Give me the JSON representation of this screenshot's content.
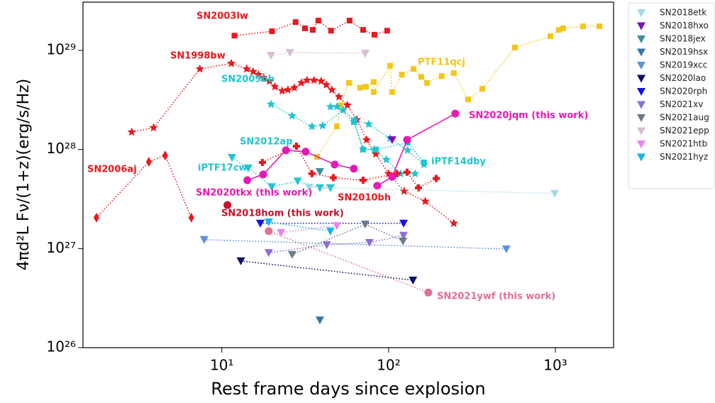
{
  "chart_data": {
    "type": "scatter",
    "x_label": "Rest frame days since explosion",
    "y_label": "4πd²L Fν/(1+z)(erg/s/Hz)",
    "x_log": true,
    "y_log": true,
    "xlim": [
      1.47,
      2233
    ],
    "ylim": [
      1e+26,
      3.07e+29
    ],
    "xticks": [
      {
        "value": 10,
        "label": "10¹"
      },
      {
        "value": 100,
        "label": "10²"
      },
      {
        "value": 1000,
        "label": "10³"
      }
    ],
    "yticks": [
      {
        "value": 1e+26,
        "label": "10²⁶"
      },
      {
        "value": 1e+27,
        "label": "10²⁷"
      },
      {
        "value": 1e+28,
        "label": "10²⁸"
      },
      {
        "value": 1e+29,
        "label": "10²⁹"
      }
    ],
    "legend": "outside-right",
    "series": [
      {
        "name": "SN2003lw",
        "color": "#e8191f",
        "marker": "square",
        "line": "dotted",
        "in_legend": false,
        "x": [
          11.9,
          20,
          27.7,
          31.5,
          35.1,
          37.9,
          45.2,
          58.3,
          70.3,
          82.2,
          98
        ],
        "values": [
          1.41e+29,
          1.56e+29,
          1.93e+29,
          1.67e+29,
          1.61e+29,
          2e+29,
          1.58e+29,
          2e+29,
          1.61e+29,
          1.44e+29,
          1.58e+29
        ]
      },
      {
        "name": "SN1998bw",
        "color": "#e8191f",
        "marker": "star",
        "line": "dotted",
        "in_legend": false,
        "x": [
          2.88,
          3.9,
          7.38,
          11.4,
          14.1,
          15.4,
          16.6,
          17.8,
          19.3,
          20.8,
          23.0,
          24.9,
          27.2,
          30.0,
          32.4,
          35.7,
          39.4,
          42.3,
          45.7,
          50.4,
          56.6,
          64.4,
          73.8,
          83.8,
          100,
          124,
          166,
          246
        ],
        "values": [
          1.5e+28,
          1.66e+28,
          6.5e+28,
          7.4e+28,
          6.5e+28,
          6.1e+28,
          5.7e+28,
          5.3e+28,
          4.9e+28,
          4.3e+28,
          3.9e+28,
          4e+28,
          4.2e+28,
          4.7e+28,
          5e+28,
          5e+28,
          4.9e+28,
          4.5e+28,
          4e+28,
          3.4e+28,
          2.8e+28,
          2e+28,
          1.25e+28,
          9e+27,
          5.7e+27,
          3.8e+27,
          3e+27,
          1.8e+27
        ]
      },
      {
        "name": "SN2006aj",
        "color": "#e8191f",
        "marker": "diamond",
        "line": "dotted",
        "in_legend": false,
        "x": [
          1.77,
          3.65,
          4.57,
          6.56
        ],
        "values": [
          2.05e+27,
          7.5e+27,
          8.7e+27,
          2.05e+27
        ]
      },
      {
        "name": "PTF11qcj",
        "color": "#f5c518",
        "marker": "square",
        "line": "dotted",
        "in_legend": false,
        "x": [
          37.2,
          48.9,
          51.4,
          57.8,
          67.6,
          73.1,
          81.4,
          81.4,
          102,
          105,
          120,
          141,
          157,
          170,
          208,
          246,
          300,
          365,
          572,
          934,
          1050,
          1114,
          1466,
          1837
        ],
        "values": [
          8.4e+27,
          1.71e+28,
          2.8e+28,
          4.7e+28,
          4.2e+28,
          4.3e+28,
          4.8e+28,
          3.8e+28,
          7e+28,
          3.8e+28,
          5.7e+28,
          6.5e+28,
          5.4e+28,
          4.7e+28,
          5.5e+28,
          5.9e+28,
          3.2e+28,
          4.1e+28,
          1.07e+29,
          1.39e+29,
          1.61e+29,
          1.67e+29,
          1.75e+29,
          1.75e+29
        ]
      },
      {
        "name": "SN2009bb",
        "color": "#22c4cf",
        "marker": "star",
        "line": "dotted",
        "in_legend": false,
        "x": [
          19.7,
          26.4,
          34.7,
          40.2,
          53.4,
          62.5,
          76,
          102,
          130,
          163
        ],
        "values": [
          2.86e+28,
          2.19e+28,
          1.71e+28,
          1.74e+28,
          2.5e+28,
          2e+28,
          1.8e+28,
          1.3e+28,
          9.8e+27,
          7.05e+27
        ]
      },
      {
        "name": "SN2012ap",
        "color": "#22c4cf",
        "marker": "star",
        "line": "dotted",
        "in_legend": false,
        "x": [
          44.8,
          49,
          62,
          70.3,
          82,
          97,
          118,
          144
        ],
        "values": [
          2.7e+28,
          2.7e+28,
          1.9e+28,
          1e+28,
          1e+28,
          7.9e+27,
          5.7e+27,
          5.7e+27
        ]
      },
      {
        "name": "iPTF17cw",
        "color": "#22c4cf",
        "marker": "triangle-down",
        "line": "dotted",
        "in_legend": false,
        "x": [
          11.5,
          14.4,
          19.9,
          28.5,
          38.7,
          44.8
        ],
        "values": [
          8.3e+27,
          6.5e+27,
          4.2e+27,
          4.8e+27,
          4.1e+27,
          4.1e+27
        ]
      },
      {
        "name": "iPTF14dby",
        "color": "#22c4cf",
        "marker": "square",
        "line": "dotted",
        "in_legend": false,
        "x": [
          62,
          70.3,
          84,
          130,
          163
        ],
        "values": [
          1.9e+28,
          1e+28,
          1e+28,
          1.17e+28,
          7.4e+27
        ]
      },
      {
        "name": "SN2010bh",
        "color": "#e8191f",
        "marker": "cross",
        "line": "dotted",
        "in_legend": false,
        "x": [
          17.5,
          28,
          34.7,
          46.6,
          70.3,
          112,
          129,
          151,
          193
        ],
        "values": [
          7.4e+27,
          1.08e+28,
          5.7e+27,
          5.2e+27,
          4.9e+27,
          5.7e+27,
          5.9e+27,
          4.1e+27,
          5.1e+27
        ]
      },
      {
        "name": "SN2020tkx (this work)",
        "color": "#e619b4",
        "marker": "circle",
        "line": "solid",
        "in_legend": false,
        "x": [
          14.2,
          17.7,
          24.2,
          31.8,
          47.5,
          61.9
        ],
        "values": [
          4.9e+27,
          5.6e+27,
          9.8e+27,
          9.5e+27,
          7.05e+27,
          6.4e+27
        ]
      },
      {
        "name": "SN2020jqm (this work)",
        "color": "#e619b4",
        "marker": "circle",
        "line": "solid",
        "in_legend": false,
        "x": [
          85.5,
          105,
          129,
          251
        ],
        "values": [
          4.3e+27,
          5.3e+27,
          1.25e+28,
          2.3e+28
        ]
      },
      {
        "name": "SN2018hom (this work)",
        "color": "#c8102e",
        "marker": "circle",
        "line": "none",
        "in_legend": false,
        "x": [
          10.8
        ],
        "values": [
          2.75e+27
        ]
      },
      {
        "name": "SN2021ywf (this work)",
        "color": "#e07090",
        "marker": "circle",
        "line": "dotted",
        "in_legend": false,
        "x": [
          19.1,
          173
        ],
        "values": [
          1.5e+27,
          3.6e+26
        ]
      },
      {
        "name": "SN2018etk",
        "color": "#a6d9e8",
        "marker": "triangle-down",
        "line": "dotted",
        "in_legend": true,
        "x": [
          33.4,
          991
        ],
        "values": [
          4.15e+27,
          3.6e+27
        ]
      },
      {
        "name": "SN2018hxo",
        "color": "#7b10b5",
        "marker": "triangle-down",
        "line": "dotted",
        "in_legend": true,
        "x": [
          105
        ],
        "values": [
          1.25e+28
        ]
      },
      {
        "name": "SN2018jex",
        "color": "#3d8f9c",
        "marker": "triangle-down",
        "line": "dotted",
        "in_legend": true,
        "x": [
          38.7
        ],
        "values": [
          5.97e+27
        ]
      },
      {
        "name": "SN2019hsx",
        "color": "#3a76a8",
        "marker": "triangle-down",
        "line": "dotted",
        "in_legend": true,
        "x": [
          38.7
        ],
        "values": [
          1.9e+26
        ]
      },
      {
        "name": "SN2019xcc",
        "color": "#5b8fe0",
        "marker": "triangle-down",
        "line": "dotted",
        "in_legend": true,
        "x": [
          7.83,
          508
        ],
        "values": [
          1.23e+27,
          9.9e+26
        ]
      },
      {
        "name": "SN2020lao",
        "color": "#0a0a6e",
        "marker": "triangle-down",
        "line": "dotted",
        "in_legend": true,
        "x": [
          13.0,
          140
        ],
        "values": [
          7.5e+26,
          4.8e+26
        ]
      },
      {
        "name": "SN2020rph",
        "color": "#1010e6",
        "marker": "triangle-down",
        "line": "dotted",
        "in_legend": true,
        "x": [
          17,
          123
        ],
        "values": [
          1.8e+27,
          1.8e+27
        ]
      },
      {
        "name": "SN2021xv",
        "color": "#8d6fd8",
        "marker": "triangle-down",
        "line": "dotted",
        "in_legend": true,
        "x": [
          19.1,
          42.6,
          76.7,
          123
        ],
        "values": [
          9.1e+26,
          1.09e+27,
          1.15e+27,
          1.36e+27
        ]
      },
      {
        "name": "SN2021aug",
        "color": "#6a7a8a",
        "marker": "triangle-down",
        "line": "dotted",
        "in_legend": true,
        "x": [
          26.4,
          72.4,
          122
        ],
        "values": [
          8.7e+26,
          1.76e+27,
          1.19e+27
        ]
      },
      {
        "name": "SN2021epp",
        "color": "#d8bcd8",
        "marker": "triangle-down",
        "line": "dotted",
        "in_legend": true,
        "x": [
          19.7,
          25.6,
          72.4
        ],
        "values": [
          8.9e+28,
          9.5e+28,
          9.35e+28
        ]
      },
      {
        "name": "SN2021htb",
        "color": "#ee82ee",
        "marker": "triangle-down",
        "line": "dotted",
        "in_legend": true,
        "x": [
          22.6,
          48.9
        ],
        "values": [
          1.45e+27,
          1.7e+27
        ]
      },
      {
        "name": "SN2021hyz",
        "color": "#14b4e8",
        "marker": "triangle-down",
        "line": "dotted",
        "in_legend": true,
        "x": [
          19.1,
          44.8
        ],
        "values": [
          1.85e+27,
          1.5e+27
        ]
      }
    ]
  }
}
